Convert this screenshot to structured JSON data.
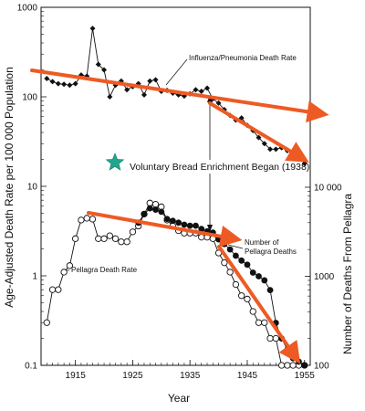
{
  "chart_data": {
    "type": "line",
    "xlabel": "Year",
    "ylabel_left": "Age-Adjusted Death Rate per 100 000 Population",
    "ylabel_right": "Number of Deaths From Pellagra",
    "x_range": [
      1909,
      1956
    ],
    "x_ticks": [
      1915,
      1925,
      1935,
      1945,
      1955
    ],
    "x_tick_labels": [
      "1915",
      "1925",
      "1935",
      "1945",
      "1955"
    ],
    "y_left_scale": "log",
    "y_left_range": [
      0.1,
      1000
    ],
    "y_left_ticks": [
      0.1,
      1,
      10,
      100,
      1000
    ],
    "y_left_tick_labels": [
      "0.1",
      "1",
      "10",
      "100",
      "1000"
    ],
    "y_right_scale": "log",
    "y_right_range": [
      100,
      10000
    ],
    "y_right_ticks": [
      100,
      1000,
      10000
    ],
    "y_right_tick_labels": [
      "100",
      "1000",
      "10 000"
    ],
    "annotations": {
      "influenza": "Influenza/Pneumonia Death Rate",
      "enrichment": "Voluntary Bread Enrichment Began (1938)",
      "pellagra_rate": "Pellagra Death Rate",
      "pellagra_deaths_line1": "Number of",
      "pellagra_deaths_line2": "Pellagra Deaths"
    },
    "series": [
      {
        "name": "Influenza/Pneumonia Death Rate",
        "axis": "left",
        "marker": "filled-diamond",
        "x": [
          1910,
          1911,
          1912,
          1913,
          1914,
          1915,
          1916,
          1917,
          1918,
          1919,
          1920,
          1921,
          1922,
          1923,
          1924,
          1925,
          1926,
          1927,
          1928,
          1929,
          1930,
          1931,
          1932,
          1933,
          1934,
          1935,
          1936,
          1937,
          1938,
          1939,
          1940,
          1941,
          1942,
          1943,
          1944,
          1945,
          1946,
          1947,
          1948,
          1949,
          1950,
          1951,
          1952,
          1953,
          1954,
          1955
        ],
        "y": [
          160,
          148,
          140,
          138,
          135,
          140,
          175,
          170,
          580,
          230,
          200,
          100,
          135,
          150,
          120,
          130,
          140,
          105,
          150,
          155,
          115,
          118,
          110,
          105,
          102,
          108,
          120,
          115,
          125,
          95,
          85,
          72,
          62,
          55,
          58,
          48,
          42,
          35,
          30,
          26,
          26,
          27,
          25,
          23,
          22,
          18
        ]
      },
      {
        "name": "Pellagra Death Rate",
        "axis": "left",
        "marker": "open-circle",
        "x": [
          1910,
          1911,
          1912,
          1913,
          1914,
          1915,
          1916,
          1917,
          1918,
          1919,
          1920,
          1921,
          1922,
          1923,
          1924,
          1925,
          1926,
          1927,
          1928,
          1929,
          1930,
          1931,
          1932,
          1933,
          1934,
          1935,
          1936,
          1937,
          1938,
          1939,
          1940,
          1941,
          1942,
          1943,
          1944,
          1945,
          1946,
          1947,
          1948,
          1949,
          1950,
          1951,
          1952,
          1953,
          1954,
          1955
        ],
        "y": [
          0.3,
          0.7,
          0.7,
          1.1,
          1.3,
          2.6,
          4.2,
          4.4,
          4.3,
          2.6,
          2.6,
          2.8,
          2.6,
          2.4,
          2.4,
          3.1,
          3.6,
          4.9,
          6.5,
          6.3,
          5.9,
          4.2,
          3.6,
          3.2,
          3.0,
          3.0,
          3.0,
          2.7,
          2.7,
          2.6,
          1.8,
          1.4,
          1.1,
          0.8,
          0.6,
          0.55,
          0.4,
          0.3,
          0.3,
          0.2,
          0.2,
          0.1,
          0.1,
          0.1,
          0.1,
          0.1
        ]
      },
      {
        "name": "Number of Pellagra Deaths",
        "axis": "right",
        "marker": "filled-circle",
        "x": [
          1926,
          1927,
          1928,
          1929,
          1930,
          1931,
          1932,
          1933,
          1934,
          1935,
          1936,
          1937,
          1938,
          1939,
          1940,
          1941,
          1942,
          1943,
          1944,
          1945,
          1946,
          1947,
          1948,
          1949,
          1950,
          1951,
          1952,
          1953,
          1954,
          1955
        ],
        "y": [
          4000,
          5000,
          5800,
          5600,
          5300,
          4400,
          4200,
          4000,
          3800,
          3700,
          3700,
          3400,
          3200,
          3100,
          2600,
          2300,
          2000,
          1700,
          1500,
          1350,
          1100,
          1000,
          900,
          700,
          300,
          200,
          150,
          120,
          110,
          100
        ]
      }
    ],
    "enrichment_year": 1938,
    "trend_arrows_color": "#ee5a24",
    "star_color": "#21a58c"
  }
}
